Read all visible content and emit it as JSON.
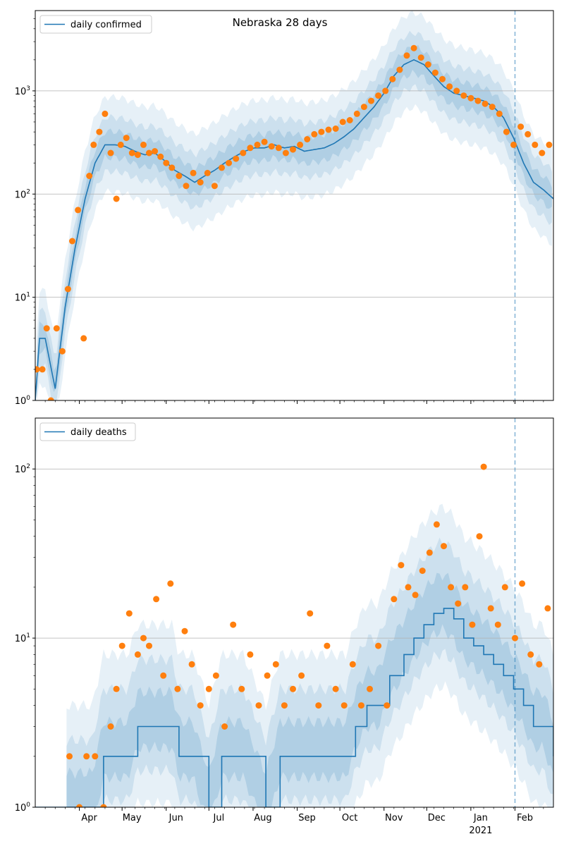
{
  "figure_title": "Nebraska 28 days",
  "chart_data": [
    {
      "type": "line",
      "title": "Nebraska 28 days",
      "yscale": "log",
      "ylim": [
        1,
        6000
      ],
      "y_ticks": [
        1,
        10,
        100,
        1000
      ],
      "xlim": [
        "2020-03-01",
        "2021-02-28"
      ],
      "forecast_start": "2021-02-01",
      "legend": {
        "placement": "top-left",
        "label": "daily confirmed"
      },
      "grid": "y-major",
      "colors": {
        "line": "#1f77b4",
        "points": "#ff7f0e",
        "band": "#1f77b4"
      },
      "series": [
        {
          "name": "daily confirmed",
          "style": "line",
          "x": [
            "2020-03-01",
            "2020-03-04",
            "2020-03-08",
            "2020-03-15",
            "2020-03-22",
            "2020-03-29",
            "2020-04-05",
            "2020-04-12",
            "2020-04-19",
            "2020-04-26",
            "2020-05-03",
            "2020-05-10",
            "2020-05-17",
            "2020-05-24",
            "2020-05-31",
            "2020-06-07",
            "2020-06-14",
            "2020-06-21",
            "2020-06-28",
            "2020-07-05",
            "2020-07-12",
            "2020-07-19",
            "2020-07-26",
            "2020-08-02",
            "2020-08-09",
            "2020-08-16",
            "2020-08-23",
            "2020-08-30",
            "2020-09-06",
            "2020-09-13",
            "2020-09-20",
            "2020-09-27",
            "2020-10-04",
            "2020-10-11",
            "2020-10-18",
            "2020-10-25",
            "2020-11-01",
            "2020-11-08",
            "2020-11-15",
            "2020-11-22",
            "2020-11-29",
            "2020-12-06",
            "2020-12-13",
            "2020-12-20",
            "2020-12-27",
            "2021-01-03",
            "2021-01-10",
            "2021-01-17",
            "2021-01-24",
            "2021-01-31",
            "2021-02-07",
            "2021-02-14",
            "2021-02-21",
            "2021-02-28"
          ],
          "values": [
            1,
            4,
            4,
            1.3,
            8,
            30,
            90,
            200,
            300,
            300,
            290,
            260,
            240,
            250,
            210,
            170,
            150,
            130,
            150,
            170,
            200,
            230,
            260,
            280,
            280,
            300,
            280,
            290,
            260,
            270,
            280,
            310,
            360,
            430,
            550,
            700,
            950,
            1400,
            1800,
            2000,
            1800,
            1400,
            1100,
            950,
            900,
            850,
            800,
            700,
            550,
            350,
            200,
            130,
            110,
            90
          ]
        },
        {
          "name": "",
          "style": "points",
          "x": [
            "2020-03-02",
            "2020-03-06",
            "2020-03-09",
            "2020-03-12",
            "2020-03-16",
            "2020-03-20",
            "2020-03-24",
            "2020-03-27",
            "2020-03-31",
            "2020-04-04",
            "2020-04-08",
            "2020-04-11",
            "2020-04-15",
            "2020-04-19",
            "2020-04-23",
            "2020-04-27",
            "2020-04-30",
            "2020-05-04",
            "2020-05-08",
            "2020-05-12",
            "2020-05-16",
            "2020-05-20",
            "2020-05-24",
            "2020-05-28",
            "2020-06-01",
            "2020-06-05",
            "2020-06-10",
            "2020-06-15",
            "2020-06-20",
            "2020-06-25",
            "2020-06-30",
            "2020-07-05",
            "2020-07-10",
            "2020-07-15",
            "2020-07-20",
            "2020-07-25",
            "2020-07-30",
            "2020-08-04",
            "2020-08-09",
            "2020-08-14",
            "2020-08-19",
            "2020-08-24",
            "2020-08-29",
            "2020-09-03",
            "2020-09-08",
            "2020-09-13",
            "2020-09-18",
            "2020-09-23",
            "2020-09-28",
            "2020-10-03",
            "2020-10-08",
            "2020-10-13",
            "2020-10-18",
            "2020-10-23",
            "2020-10-28",
            "2020-11-02",
            "2020-11-07",
            "2020-11-12",
            "2020-11-17",
            "2020-11-22",
            "2020-11-27",
            "2020-12-02",
            "2020-12-07",
            "2020-12-12",
            "2020-12-17",
            "2020-12-22",
            "2020-12-27",
            "2021-01-01",
            "2021-01-06",
            "2021-01-11",
            "2021-01-16",
            "2021-01-21",
            "2021-01-26",
            "2021-01-31",
            "2021-02-05",
            "2021-02-10",
            "2021-02-15",
            "2021-02-20",
            "2021-02-25"
          ],
          "values": [
            2,
            2,
            5,
            1,
            5,
            3,
            12,
            35,
            70,
            4,
            150,
            300,
            400,
            600,
            250,
            90,
            300,
            350,
            250,
            240,
            300,
            250,
            260,
            230,
            200,
            180,
            150,
            120,
            160,
            130,
            160,
            120,
            180,
            200,
            220,
            250,
            280,
            300,
            320,
            290,
            280,
            250,
            270,
            300,
            340,
            380,
            400,
            420,
            430,
            500,
            520,
            600,
            700,
            800,
            900,
            1000,
            1300,
            1600,
            2200,
            2600,
            2100,
            1800,
            1500,
            1300,
            1100,
            1000,
            900,
            850,
            800,
            750,
            700,
            600,
            400,
            300,
            450,
            380,
            300,
            250,
            300
          ]
        }
      ]
    },
    {
      "type": "line",
      "title": "",
      "yscale": "log",
      "ylim": [
        1,
        200
      ],
      "y_ticks": [
        1,
        10,
        100
      ],
      "xlim": [
        "2020-03-01",
        "2021-02-28"
      ],
      "forecast_start": "2021-02-01",
      "legend": {
        "placement": "top-left",
        "label": "daily deaths"
      },
      "grid": "y-major",
      "colors": {
        "line": "#1f77b4",
        "points": "#ff7f0e",
        "band": "#1f77b4"
      },
      "series": [
        {
          "name": "daily deaths",
          "style": "line",
          "step": true,
          "x": [
            "2020-03-01",
            "2020-04-10",
            "2020-04-18",
            "2020-05-05",
            "2020-05-12",
            "2020-06-05",
            "2020-06-10",
            "2020-06-20",
            "2020-07-01",
            "2020-07-10",
            "2020-07-25",
            "2020-08-10",
            "2020-08-20",
            "2020-09-10",
            "2020-10-05",
            "2020-10-12",
            "2020-10-20",
            "2020-10-28",
            "2020-11-05",
            "2020-11-15",
            "2020-11-22",
            "2020-11-29",
            "2020-12-06",
            "2020-12-13",
            "2020-12-20",
            "2020-12-27",
            "2021-01-03",
            "2021-01-10",
            "2021-01-17",
            "2021-01-24",
            "2021-01-31",
            "2021-02-07",
            "2021-02-14",
            "2021-02-21",
            "2021-02-28"
          ],
          "values": [
            1,
            1,
            2,
            2,
            3,
            3,
            2,
            2,
            1,
            2,
            2,
            1,
            2,
            2,
            2,
            3,
            4,
            4,
            6,
            8,
            10,
            12,
            14,
            15,
            13,
            10,
            9,
            8,
            7,
            6,
            5,
            4,
            3,
            3,
            2
          ]
        },
        {
          "name": "",
          "style": "points",
          "x": [
            "2020-03-25",
            "2020-04-01",
            "2020-04-06",
            "2020-04-12",
            "2020-04-18",
            "2020-04-23",
            "2020-04-27",
            "2020-05-01",
            "2020-05-06",
            "2020-05-12",
            "2020-05-16",
            "2020-05-20",
            "2020-05-25",
            "2020-05-30",
            "2020-06-04",
            "2020-06-09",
            "2020-06-14",
            "2020-06-19",
            "2020-06-25",
            "2020-07-01",
            "2020-07-06",
            "2020-07-12",
            "2020-07-18",
            "2020-07-24",
            "2020-07-30",
            "2020-08-05",
            "2020-08-11",
            "2020-08-17",
            "2020-08-23",
            "2020-08-29",
            "2020-09-04",
            "2020-09-10",
            "2020-09-16",
            "2020-09-22",
            "2020-09-28",
            "2020-10-04",
            "2020-10-10",
            "2020-10-16",
            "2020-10-22",
            "2020-10-28",
            "2020-11-03",
            "2020-11-08",
            "2020-11-13",
            "2020-11-18",
            "2020-11-23",
            "2020-11-28",
            "2020-12-03",
            "2020-12-08",
            "2020-12-13",
            "2020-12-18",
            "2020-12-23",
            "2020-12-28",
            "2021-01-02",
            "2021-01-07",
            "2021-01-10",
            "2021-01-15",
            "2021-01-20",
            "2021-01-25",
            "2021-02-01",
            "2021-02-06",
            "2021-02-12",
            "2021-02-18",
            "2021-02-24"
          ],
          "values": [
            2,
            1,
            2,
            2,
            1,
            3,
            5,
            9,
            14,
            8,
            10,
            9,
            17,
            6,
            21,
            5,
            11,
            7,
            4,
            5,
            6,
            3,
            12,
            5,
            8,
            4,
            6,
            7,
            4,
            5,
            6,
            14,
            4,
            9,
            5,
            4,
            7,
            4,
            5,
            9,
            4,
            17,
            27,
            20,
            18,
            25,
            32,
            47,
            35,
            20,
            16,
            20,
            12,
            40,
            103,
            15,
            12,
            20,
            10,
            21,
            8,
            7,
            15
          ]
        }
      ]
    }
  ],
  "x_tick_labels": [
    "Apr",
    "May",
    "Jun",
    "Jul",
    "Aug",
    "Sep",
    "Oct",
    "Nov",
    "Dec",
    "Jan",
    "Feb"
  ],
  "x_year_label": "2021"
}
